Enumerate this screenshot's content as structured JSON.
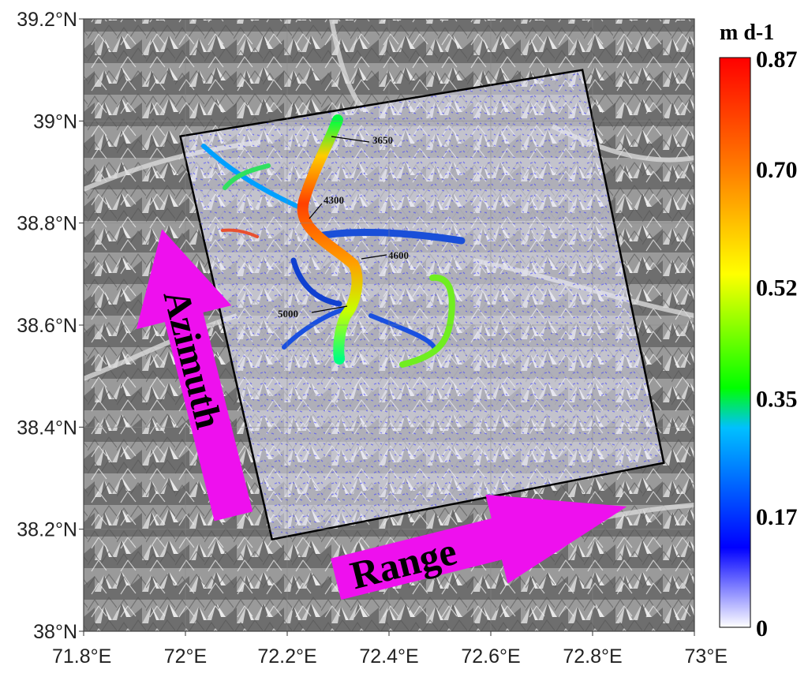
{
  "map": {
    "lat_labels": [
      "39.2°N",
      "39°N",
      "38.8°N",
      "38.6°N",
      "38.4°N",
      "38.2°N",
      "38°N"
    ],
    "lon_labels": [
      "71.8°E",
      "72°E",
      "72.2°E",
      "72.4°E",
      "72.6°E",
      "72.8°E",
      "73°E"
    ],
    "lat_range": [
      38.0,
      39.2
    ],
    "lon_range": [
      71.8,
      73.0
    ],
    "grid": true,
    "basemap": "grayscale shaded-relief terrain",
    "footprint_corners_lonlat": [
      [
        71.99,
        38.97
      ],
      [
        72.78,
        39.1
      ],
      [
        72.94,
        38.33
      ],
      [
        72.17,
        38.18
      ]
    ],
    "contour_labels": [
      "3650",
      "4300",
      "4600",
      "5000"
    ],
    "arrows": {
      "azimuth": {
        "label": "Azimuth",
        "color": "#ee10ee"
      },
      "range": {
        "label": "Range",
        "color": "#ee10ee"
      }
    }
  },
  "colorbar": {
    "title": "m d-1",
    "tick_labels": [
      "0.87",
      "0.70",
      "0.52",
      "0.35",
      "0.17",
      "0"
    ],
    "min": 0,
    "max": 0.87,
    "colors": [
      "#ffffff",
      "#0000ff",
      "#00ff00",
      "#ffff00",
      "#ff8000",
      "#ff0000"
    ]
  }
}
